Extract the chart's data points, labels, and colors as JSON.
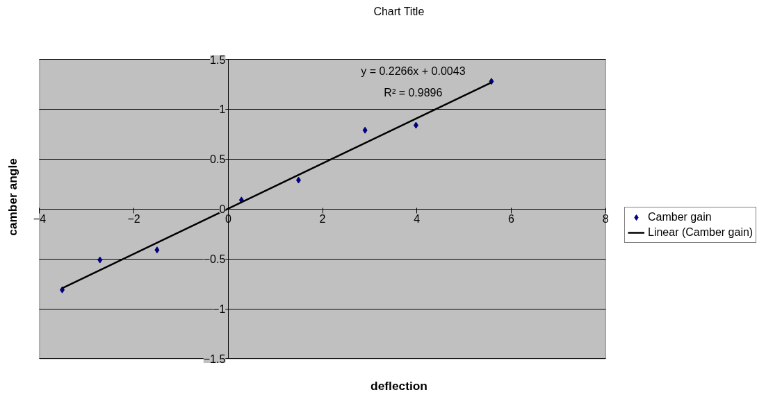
{
  "chart_data": {
    "type": "scatter",
    "title": "Chart Title",
    "xlabel": "deflection",
    "ylabel": "camber angle",
    "annotations": [
      "y = 0.2266x + 0.0043",
      "R² = 0.9896"
    ],
    "xlim": [
      -4,
      8
    ],
    "xticks": [
      -4,
      -2,
      0,
      2,
      4,
      6,
      8
    ],
    "ylim": [
      -1.5,
      1.5
    ],
    "yticks": [
      -1.5,
      -1,
      -0.5,
      0,
      0.5,
      1,
      1.5
    ],
    "grid": "y",
    "legend": "right",
    "series": [
      {
        "name": "Camber gain",
        "marker": "diamond",
        "color": "#000080",
        "x": [
          -3.52,
          -2.72,
          -1.51,
          0.28,
          1.49,
          2.9,
          3.98,
          5.58
        ],
        "values": [
          -0.81,
          -0.51,
          -0.41,
          0.09,
          0.29,
          0.79,
          0.84,
          1.28
        ]
      },
      {
        "name": "Linear (Camber gain)",
        "type": "line",
        "color": "#000000",
        "x": [
          -3.52,
          5.58
        ],
        "values": [
          -0.793,
          1.269
        ]
      }
    ]
  }
}
